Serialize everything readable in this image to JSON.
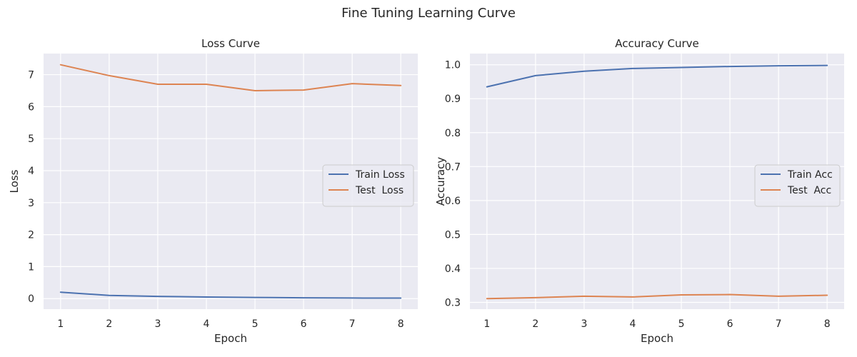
{
  "figure": {
    "title": "Fine Tuning Learning Curve"
  },
  "chart_data": [
    {
      "type": "line",
      "title": "Loss Curve",
      "xlabel": "Epoch",
      "ylabel": "Loss",
      "x": [
        1,
        2,
        3,
        4,
        5,
        6,
        7,
        8
      ],
      "xlim": [
        0.65,
        8.35
      ],
      "ylim": [
        -0.33,
        7.66
      ],
      "xticks": [
        1,
        2,
        3,
        4,
        5,
        6,
        7,
        8
      ],
      "yticks": [
        0,
        1,
        2,
        3,
        4,
        5,
        6,
        7
      ],
      "grid": true,
      "legend_position": "center-right",
      "series": [
        {
          "name": "Train Loss",
          "color": "#4c72b0",
          "values": [
            0.2,
            0.1,
            0.07,
            0.05,
            0.035,
            0.025,
            0.018,
            0.015
          ]
        },
        {
          "name": "Test  Loss",
          "color": "#dd8452",
          "values": [
            7.31,
            6.97,
            6.7,
            6.7,
            6.5,
            6.52,
            6.72,
            6.66
          ]
        }
      ]
    },
    {
      "type": "line",
      "title": "Accuracy Curve",
      "xlabel": "Epoch",
      "ylabel": "Accuracy",
      "x": [
        1,
        2,
        3,
        4,
        5,
        6,
        7,
        8
      ],
      "xlim": [
        0.65,
        8.35
      ],
      "ylim": [
        0.28,
        1.033
      ],
      "xticks": [
        1,
        2,
        3,
        4,
        5,
        6,
        7,
        8
      ],
      "yticks": [
        0.3,
        0.4,
        0.5,
        0.6,
        0.7,
        0.8,
        0.9,
        1.0
      ],
      "yticks_format": 1,
      "grid": true,
      "legend_position": "center-right",
      "series": [
        {
          "name": "Train Acc",
          "color": "#4c72b0",
          "values": [
            0.935,
            0.968,
            0.981,
            0.989,
            0.992,
            0.995,
            0.997,
            0.998
          ]
        },
        {
          "name": "Test  Acc",
          "color": "#dd8452",
          "values": [
            0.311,
            0.314,
            0.318,
            0.316,
            0.322,
            0.323,
            0.318,
            0.321
          ]
        }
      ]
    }
  ]
}
